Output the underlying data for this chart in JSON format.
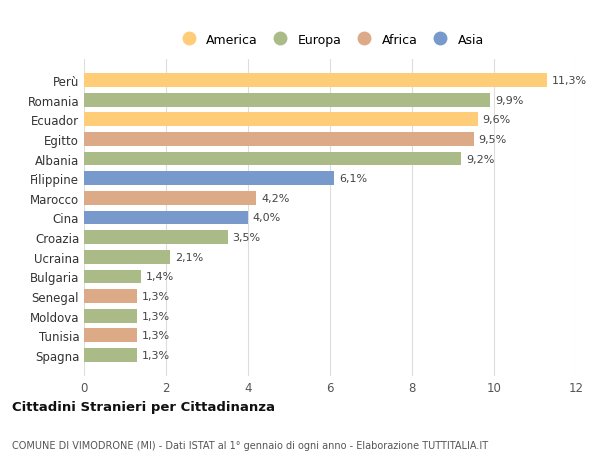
{
  "categories": [
    "Spagna",
    "Tunisia",
    "Moldova",
    "Senegal",
    "Bulgaria",
    "Ucraina",
    "Croazia",
    "Cina",
    "Marocco",
    "Filippine",
    "Albania",
    "Egitto",
    "Ecuador",
    "Romania",
    "Perù"
  ],
  "values": [
    1.3,
    1.3,
    1.3,
    1.3,
    1.4,
    2.1,
    3.5,
    4.0,
    4.2,
    6.1,
    9.2,
    9.5,
    9.6,
    9.9,
    11.3
  ],
  "labels": [
    "1,3%",
    "1,3%",
    "1,3%",
    "1,3%",
    "1,4%",
    "2,1%",
    "3,5%",
    "4,0%",
    "4,2%",
    "6,1%",
    "9,2%",
    "9,5%",
    "9,6%",
    "9,9%",
    "11,3%"
  ],
  "continents": [
    "Europa",
    "Africa",
    "Europa",
    "Africa",
    "Europa",
    "Europa",
    "Europa",
    "Asia",
    "Africa",
    "Asia",
    "Europa",
    "Africa",
    "America",
    "Europa",
    "America"
  ],
  "colors": {
    "America": "#FFCC77",
    "Europa": "#AABB88",
    "Africa": "#DDAA88",
    "Asia": "#7799CC"
  },
  "legend_order": [
    "America",
    "Europa",
    "Africa",
    "Asia"
  ],
  "title1": "Cittadini Stranieri per Cittadinanza",
  "title2": "COMUNE DI VIMODRONE (MI) - Dati ISTAT al 1° gennaio di ogni anno - Elaborazione TUTTITALIA.IT",
  "xlim": [
    0,
    12
  ],
  "xticks": [
    0,
    2,
    4,
    6,
    8,
    10,
    12
  ],
  "bg_color": "#ffffff",
  "grid_color": "#dddddd"
}
